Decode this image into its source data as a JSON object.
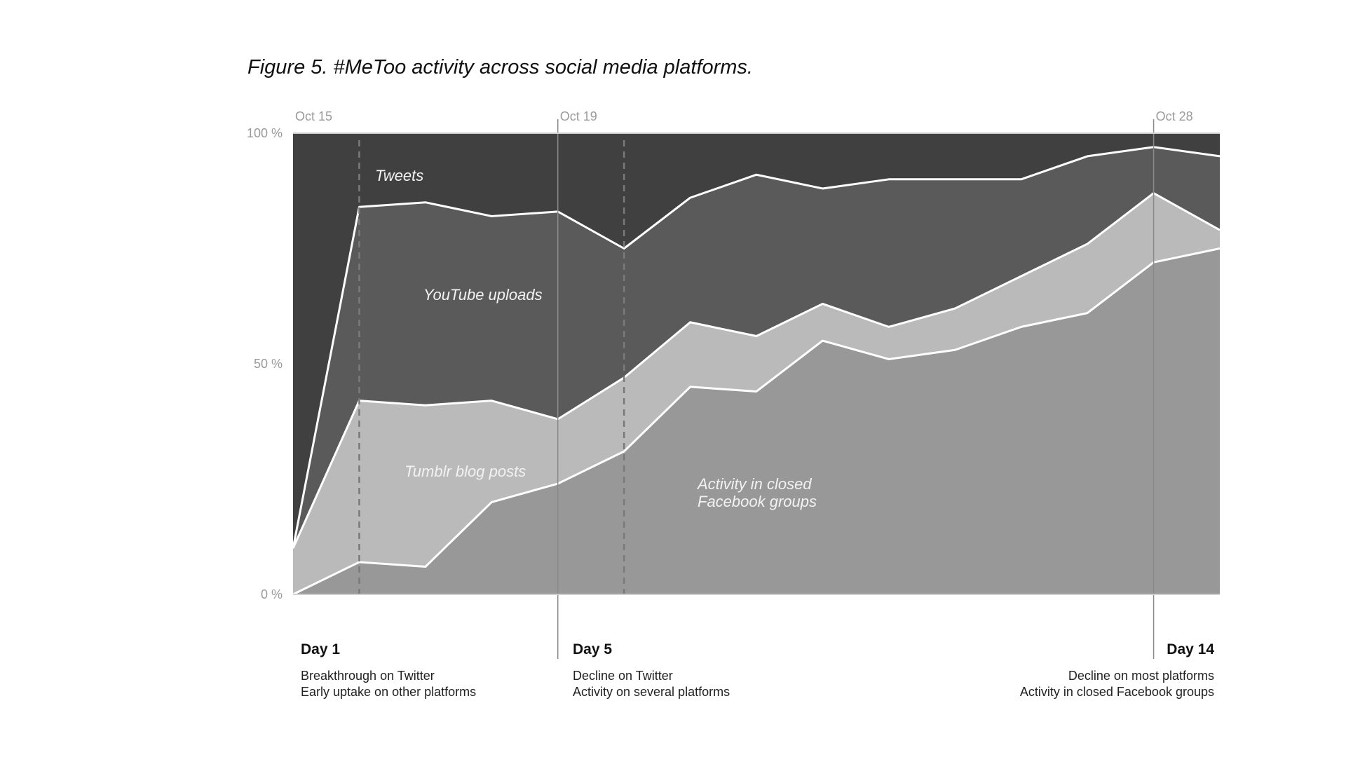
{
  "title": "Figure 5. #MeToo activity across social media platforms.",
  "chart_data": {
    "type": "area",
    "stacked": true,
    "normalized": true,
    "title": "Figure 5. #MeToo activity across social media platforms.",
    "x": [
      1,
      2,
      3,
      4,
      5,
      6,
      7,
      8,
      9,
      10,
      11,
      12,
      13,
      14,
      15
    ],
    "date_ticks": [
      {
        "day": 1,
        "label": "Oct 15"
      },
      {
        "day": 5,
        "label": "Oct 19"
      },
      {
        "day": 14,
        "label": "Oct 28"
      }
    ],
    "y_ticks": [
      "0 %",
      "50 %",
      "100 %"
    ],
    "ylim": [
      0,
      100
    ],
    "series": [
      {
        "name": "Activity in closed Facebook groups",
        "color": "#989898",
        "values": [
          0,
          7,
          6,
          20,
          24,
          31,
          45,
          44,
          55,
          51,
          53,
          58,
          61,
          72,
          75
        ]
      },
      {
        "name": "Tumblr blog posts",
        "color": "#bababa",
        "values": [
          10,
          35,
          35,
          22,
          14,
          16,
          14,
          12,
          8,
          7,
          9,
          11,
          15,
          15,
          4
        ]
      },
      {
        "name": "YouTube uploads",
        "color": "#5a5a5a",
        "values": [
          0,
          42,
          44,
          40,
          45,
          28,
          27,
          35,
          25,
          32,
          28,
          21,
          19,
          10,
          16
        ]
      },
      {
        "name": "Tweets",
        "color": "#404040",
        "values": [
          90,
          16,
          15,
          18,
          17,
          25,
          14,
          9,
          12,
          10,
          10,
          10,
          5,
          3,
          5
        ]
      }
    ],
    "series_label_lines": {
      "tweets": "Tweets",
      "youtube": "YouTube uploads",
      "tumblr": "Tumblr blog posts",
      "facebook_1": "Activity in closed",
      "facebook_2": "Facebook groups"
    },
    "markers": {
      "dashed_days": [
        2,
        6
      ],
      "solid_days": [
        5,
        14
      ]
    }
  },
  "annotations": {
    "day1": {
      "head": "Day 1",
      "line1": "Breakthrough on Twitter",
      "line2": "Early uptake on other platforms"
    },
    "day5": {
      "head": "Day 5",
      "line1": "Decline on Twitter",
      "line2": "Activity on several platforms"
    },
    "day14": {
      "head": "Day 14",
      "line1": "Decline on most platforms",
      "line2": "Activity in closed Facebook groups"
    }
  },
  "colors": {
    "background": "#ffffff",
    "boundary": "#ffffff",
    "marker_line": "#8a8a8a"
  }
}
